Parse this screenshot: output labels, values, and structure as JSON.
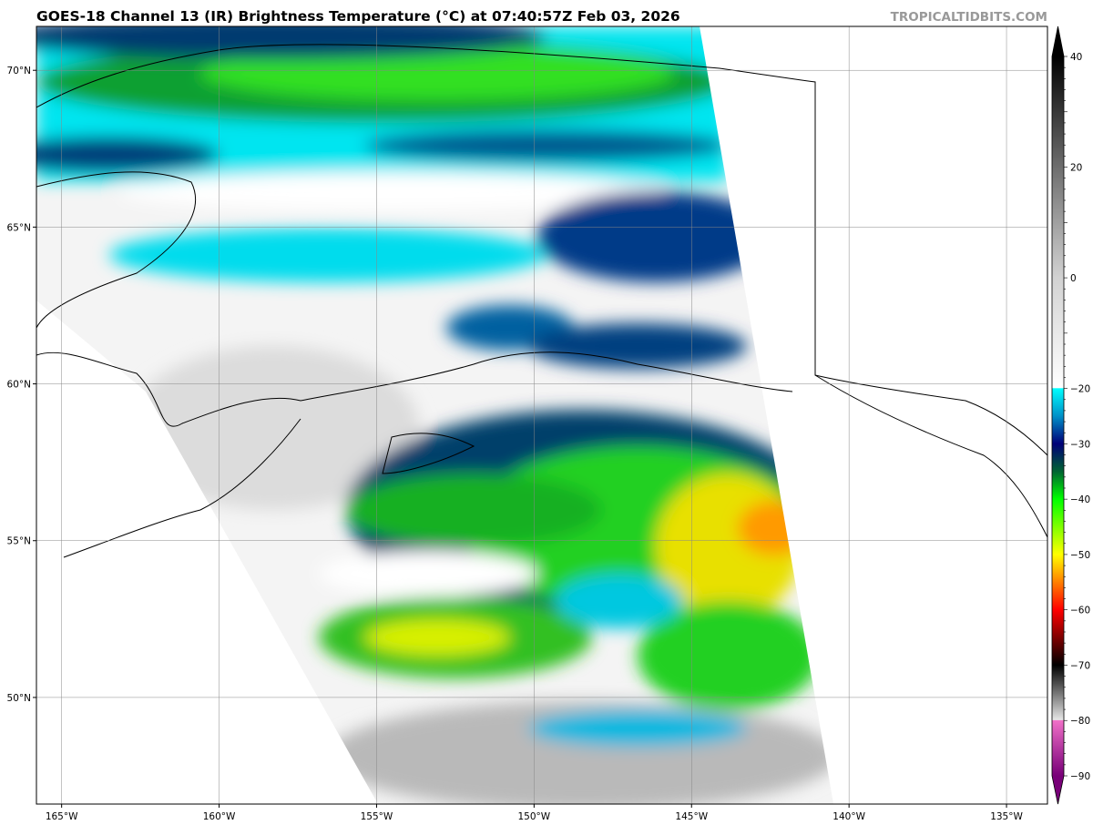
{
  "title": "GOES-18 Channel 13 (IR) Brightness Temperature (°C) at 07:40:57Z Feb 03, 2026",
  "brand": "TROPICALTIDBITS.COM",
  "map": {
    "lon_range": [
      -165.8,
      -133.7
    ],
    "lat_range": [
      46.6,
      71.4
    ],
    "lon_ticks": [
      {
        "v": -165,
        "label": "165°W"
      },
      {
        "v": -160,
        "label": "160°W"
      },
      {
        "v": -155,
        "label": "155°W"
      },
      {
        "v": -150,
        "label": "150°W"
      },
      {
        "v": -145,
        "label": "145°W"
      },
      {
        "v": -140,
        "label": "140°W"
      },
      {
        "v": -135,
        "label": "135°W"
      }
    ],
    "lat_ticks": [
      {
        "v": 70,
        "label": "70°N"
      },
      {
        "v": 65,
        "label": "65°N"
      },
      {
        "v": 60,
        "label": "60°N"
      },
      {
        "v": 55,
        "label": "55°N"
      },
      {
        "v": 50,
        "label": "50°N"
      }
    ],
    "grid": true
  },
  "colorbar": {
    "range": [
      -90,
      40
    ],
    "ticks": [
      {
        "v": 40,
        "label": "40"
      },
      {
        "v": 20,
        "label": "20"
      },
      {
        "v": 0,
        "label": "0"
      },
      {
        "v": -20,
        "label": "−20"
      },
      {
        "v": -30,
        "label": "−30"
      },
      {
        "v": -40,
        "label": "−40"
      },
      {
        "v": -50,
        "label": "−50"
      },
      {
        "v": -60,
        "label": "−60"
      },
      {
        "v": -70,
        "label": "−70"
      },
      {
        "v": -80,
        "label": "−80"
      },
      {
        "v": -90,
        "label": "−90"
      }
    ],
    "stops": [
      {
        "v": 40,
        "c": "#000000"
      },
      {
        "v": 20,
        "c": "#6e6e6e"
      },
      {
        "v": 0,
        "c": "#d2d2d2"
      },
      {
        "v": -19.9,
        "c": "#ffffff"
      },
      {
        "v": -20,
        "c": "#00ffff"
      },
      {
        "v": -25,
        "c": "#0090c8"
      },
      {
        "v": -30,
        "c": "#000078"
      },
      {
        "v": -35,
        "c": "#006432"
      },
      {
        "v": -40,
        "c": "#00ff00"
      },
      {
        "v": -50,
        "c": "#ffff00"
      },
      {
        "v": -60,
        "c": "#ff0000"
      },
      {
        "v": -70,
        "c": "#000000"
      },
      {
        "v": -79.9,
        "c": "#e6e6e6"
      },
      {
        "v": -80,
        "c": "#f070c8"
      },
      {
        "v": -90,
        "c": "#780078"
      }
    ]
  }
}
